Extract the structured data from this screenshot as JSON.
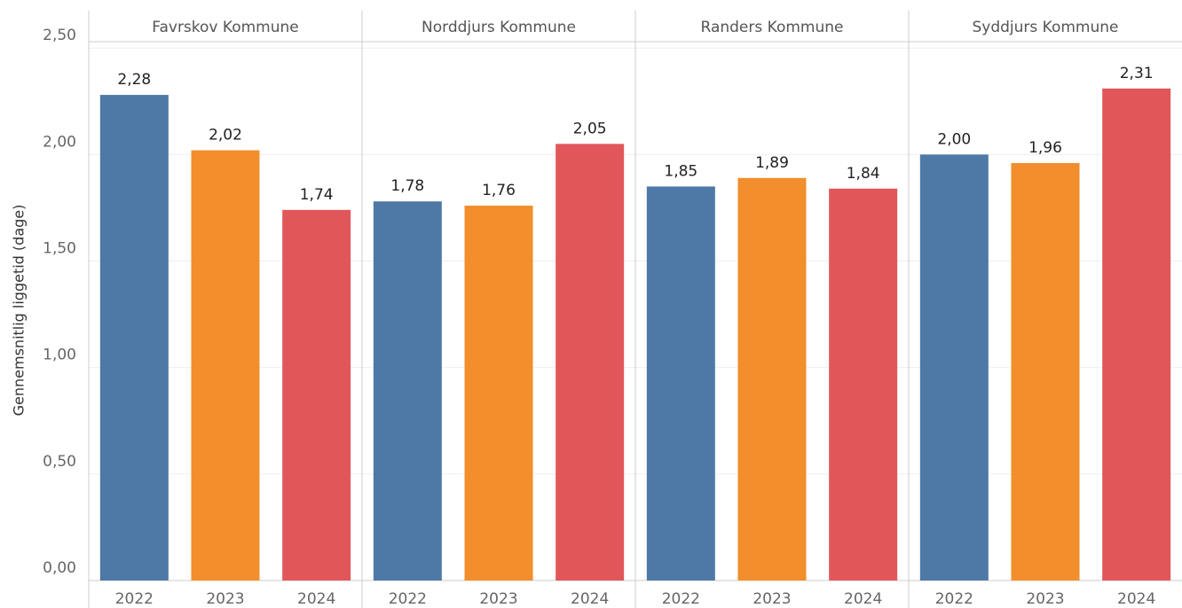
{
  "chart_data": {
    "type": "bar",
    "y_label": "Gennemsnitlig liggetid (dage)",
    "categories": [
      "2022",
      "2023",
      "2024"
    ],
    "colors": [
      "#4e79a7",
      "#f28e2b",
      "#e15759"
    ],
    "ylim": [
      0,
      2.53
    ],
    "yticks": [
      {
        "value": 0,
        "label": "0,00"
      },
      {
        "value": 0.5,
        "label": "0,50"
      },
      {
        "value": 1,
        "label": "1,00"
      },
      {
        "value": 1.5,
        "label": "1,50"
      },
      {
        "value": 2,
        "label": "2,00"
      },
      {
        "value": 2.5,
        "label": "2,50"
      }
    ],
    "grid": true,
    "facets": [
      {
        "name": "Favrskov Kommune",
        "values": [
          2.28,
          2.02,
          1.74
        ],
        "value_labels": [
          "2,28",
          "2,02",
          "1,74"
        ]
      },
      {
        "name": "Norddjurs Kommune",
        "values": [
          1.78,
          1.76,
          2.05
        ],
        "value_labels": [
          "1,78",
          "1,76",
          "2,05"
        ]
      },
      {
        "name": "Randers Kommune",
        "values": [
          1.85,
          1.89,
          1.84
        ],
        "value_labels": [
          "1,85",
          "1,89",
          "1,84"
        ]
      },
      {
        "name": "Syddjurs Kommune",
        "values": [
          2.0,
          1.96,
          2.31
        ],
        "value_labels": [
          "2,00",
          "1,96",
          "2,31"
        ]
      }
    ]
  }
}
